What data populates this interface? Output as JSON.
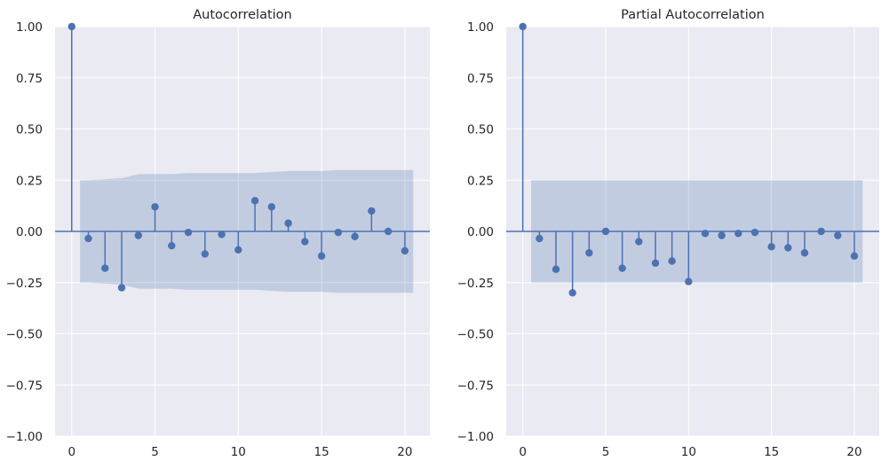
{
  "colors": {
    "marker": "#4c72b0",
    "axes_background": "#eaeaf2",
    "grid": "#ffffff",
    "text": "#262626"
  },
  "chart_data": [
    {
      "type": "stem",
      "title": "Autocorrelation",
      "xlabel": "",
      "ylabel": "",
      "xlim": [
        -1,
        21.5
      ],
      "ylim": [
        -1.0,
        1.0
      ],
      "xticks": [
        "0",
        "5",
        "10",
        "15",
        "20"
      ],
      "yticks": [
        "−1.00",
        "−0.75",
        "−0.50",
        "−0.25",
        "0.00",
        "0.25",
        "0.50",
        "0.75",
        "1.00"
      ],
      "grid": true,
      "lags": [
        0,
        1,
        2,
        3,
        4,
        5,
        6,
        7,
        8,
        9,
        10,
        11,
        12,
        13,
        14,
        15,
        16,
        17,
        18,
        19,
        20
      ],
      "values": [
        1.0,
        -0.035,
        -0.18,
        -0.275,
        -0.02,
        0.12,
        -0.07,
        -0.005,
        -0.11,
        -0.015,
        -0.09,
        0.15,
        0.12,
        0.04,
        -0.05,
        -0.12,
        -0.005,
        -0.025,
        0.1,
        0.0,
        -0.095
      ],
      "confint_upper": [
        0.25,
        0.25,
        0.255,
        0.26,
        0.28,
        0.28,
        0.28,
        0.285,
        0.285,
        0.285,
        0.285,
        0.285,
        0.29,
        0.295,
        0.295,
        0.295,
        0.3,
        0.3,
        0.3,
        0.3,
        0.3
      ],
      "confint_lower": [
        -0.25,
        -0.25,
        -0.255,
        -0.26,
        -0.28,
        -0.28,
        -0.28,
        -0.285,
        -0.285,
        -0.285,
        -0.285,
        -0.285,
        -0.29,
        -0.295,
        -0.295,
        -0.295,
        -0.3,
        -0.3,
        -0.3,
        -0.3,
        -0.3
      ]
    },
    {
      "type": "stem",
      "title": "Partial Autocorrelation",
      "xlabel": "",
      "ylabel": "",
      "xlim": [
        -1,
        21.5
      ],
      "ylim": [
        -1.0,
        1.0
      ],
      "xticks": [
        "0",
        "5",
        "10",
        "15",
        "20"
      ],
      "yticks": [
        "−1.00",
        "−0.75",
        "−0.50",
        "−0.25",
        "0.00",
        "0.25",
        "0.50",
        "0.75",
        "1.00"
      ],
      "grid": true,
      "lags": [
        0,
        1,
        2,
        3,
        4,
        5,
        6,
        7,
        8,
        9,
        10,
        11,
        12,
        13,
        14,
        15,
        16,
        17,
        18,
        19,
        20
      ],
      "values": [
        1.0,
        -0.035,
        -0.185,
        -0.3,
        -0.105,
        0.0,
        -0.18,
        -0.05,
        -0.155,
        -0.145,
        -0.245,
        -0.01,
        -0.02,
        -0.01,
        -0.005,
        -0.075,
        -0.08,
        -0.105,
        0.0,
        -0.02,
        -0.12
      ],
      "confint_upper": [
        0.25,
        0.25,
        0.25,
        0.25,
        0.25,
        0.25,
        0.25,
        0.25,
        0.25,
        0.25,
        0.25,
        0.25,
        0.25,
        0.25,
        0.25,
        0.25,
        0.25,
        0.25,
        0.25,
        0.25,
        0.25
      ],
      "confint_lower": [
        -0.25,
        -0.25,
        -0.25,
        -0.25,
        -0.25,
        -0.25,
        -0.25,
        -0.25,
        -0.25,
        -0.25,
        -0.25,
        -0.25,
        -0.25,
        -0.25,
        -0.25,
        -0.25,
        -0.25,
        -0.25,
        -0.25,
        -0.25,
        -0.25
      ]
    }
  ]
}
